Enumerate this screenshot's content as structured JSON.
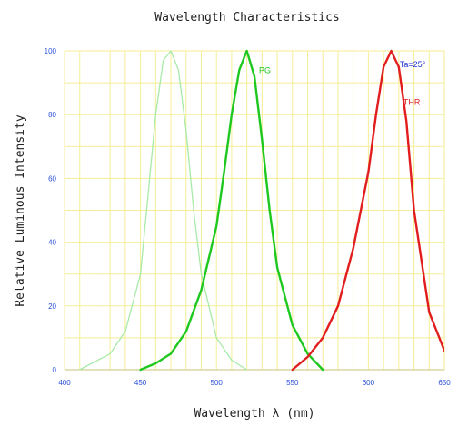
{
  "chart_data": {
    "type": "line",
    "title": "Wavelength Characteristics",
    "xlabel": "Wavelength λ (nm)",
    "ylabel": "Relative Luminous Intensity",
    "xlim": [
      400,
      650
    ],
    "ylim": [
      0,
      100
    ],
    "xticks": [
      "400",
      "450",
      "500",
      "550",
      "600",
      "650"
    ],
    "yticks": [
      "0",
      "20",
      "40",
      "60",
      "80",
      "100"
    ],
    "grid": true,
    "grid_color": "#f5ee96",
    "annotation": "Ta=25°",
    "annotation_color": "#1f2fd0",
    "series": [
      {
        "name": "",
        "color": "#a8eaa8",
        "x": [
          410,
          430,
          440,
          450,
          455,
          460,
          465,
          470,
          475,
          480,
          485,
          490,
          500,
          510,
          520
        ],
        "y": [
          0,
          5,
          12,
          30,
          55,
          80,
          97,
          100,
          94,
          75,
          50,
          30,
          10,
          3,
          0
        ]
      },
      {
        "name": "PG",
        "color": "#1ec81e",
        "x": [
          450,
          460,
          470,
          480,
          490,
          500,
          505,
          510,
          515,
          520,
          525,
          530,
          535,
          540,
          550,
          560,
          570
        ],
        "y": [
          0,
          2,
          5,
          12,
          25,
          45,
          62,
          80,
          94,
          100,
          92,
          72,
          50,
          32,
          14,
          5,
          0
        ]
      },
      {
        "name": "THR",
        "color": "#e11d1d",
        "x": [
          550,
          560,
          570,
          580,
          590,
          600,
          605,
          610,
          615,
          620,
          625,
          630,
          640,
          650,
          660
        ],
        "y": [
          0,
          4,
          10,
          20,
          38,
          62,
          80,
          95,
          100,
          95,
          78,
          50,
          18,
          6,
          0
        ]
      }
    ],
    "series_labels": [
      {
        "text": "PG",
        "color": "#1ec81e",
        "x": 528,
        "y": 93
      },
      {
        "text": "THR",
        "color": "#e11d1d",
        "x": 623,
        "y": 83
      }
    ]
  }
}
